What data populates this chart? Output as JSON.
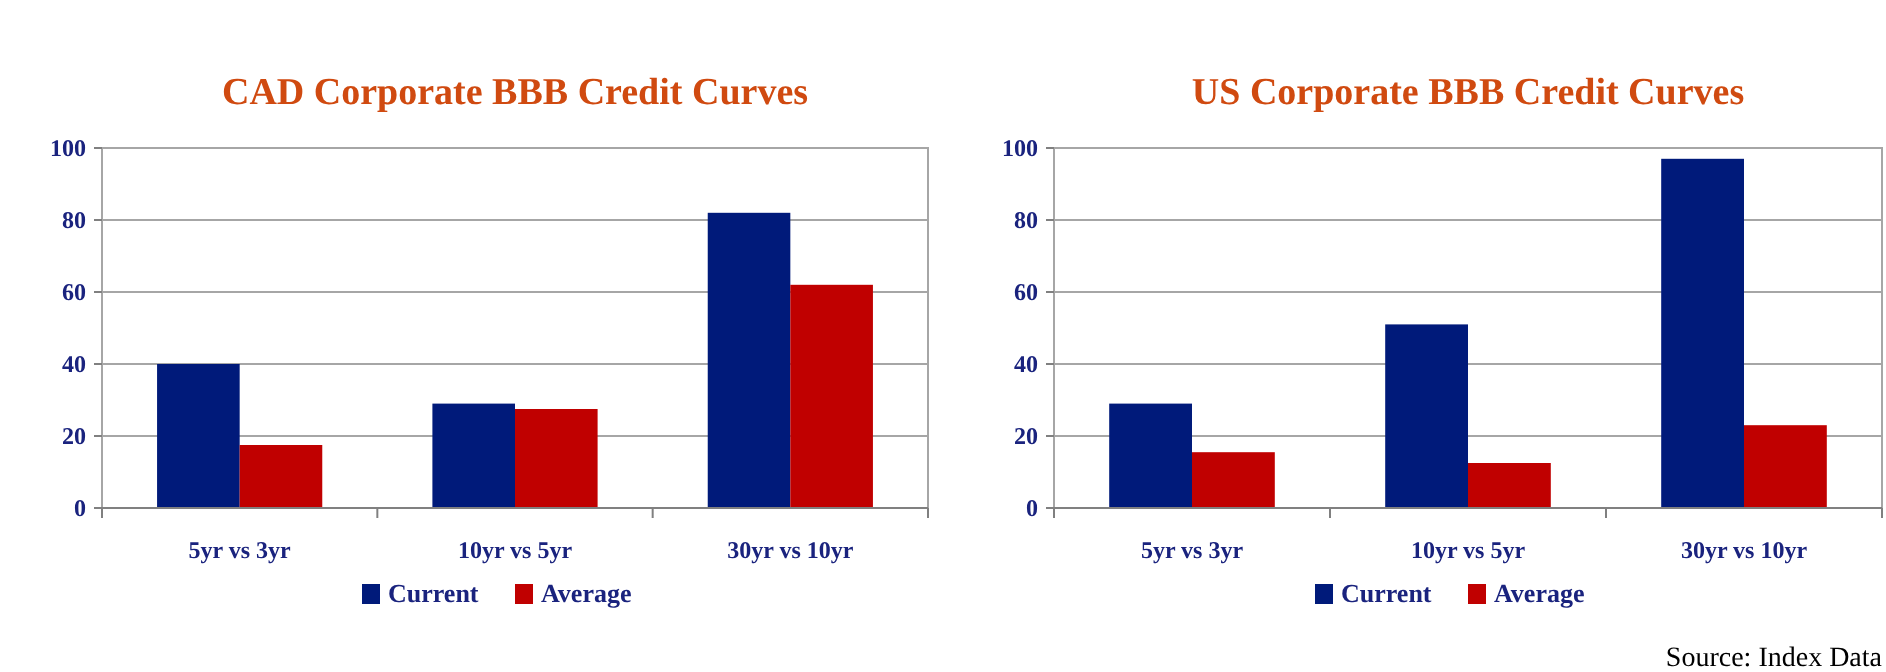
{
  "chart_data": [
    {
      "type": "bar",
      "title": "CAD Corporate BBB Credit Curves",
      "categories": [
        "5yr vs 3yr",
        "10yr vs 5yr",
        "30yr vs 10yr"
      ],
      "series": [
        {
          "name": "Current",
          "color": "#001a7a",
          "values": [
            40,
            29,
            82
          ]
        },
        {
          "name": "Average",
          "color": "#c00000",
          "values": [
            17.5,
            27.5,
            62
          ]
        }
      ],
      "ylim": [
        0,
        100
      ],
      "yticks": [
        0,
        20,
        40,
        60,
        80,
        100
      ],
      "grid": "y",
      "legend": "bottom"
    },
    {
      "type": "bar",
      "title": "US Corporate BBB Credit Curves",
      "categories": [
        "5yr vs 3yr",
        "10yr vs 5yr",
        "30yr vs 10yr"
      ],
      "series": [
        {
          "name": "Current",
          "color": "#001a7a",
          "values": [
            29,
            51,
            97
          ]
        },
        {
          "name": "Average",
          "color": "#c00000",
          "values": [
            15.5,
            12.5,
            23
          ]
        }
      ],
      "ylim": [
        0,
        100
      ],
      "yticks": [
        0,
        20,
        40,
        60,
        80,
        100
      ],
      "grid": "y",
      "legend": "bottom",
      "annotations": [
        "Source: Index Data"
      ]
    }
  ]
}
